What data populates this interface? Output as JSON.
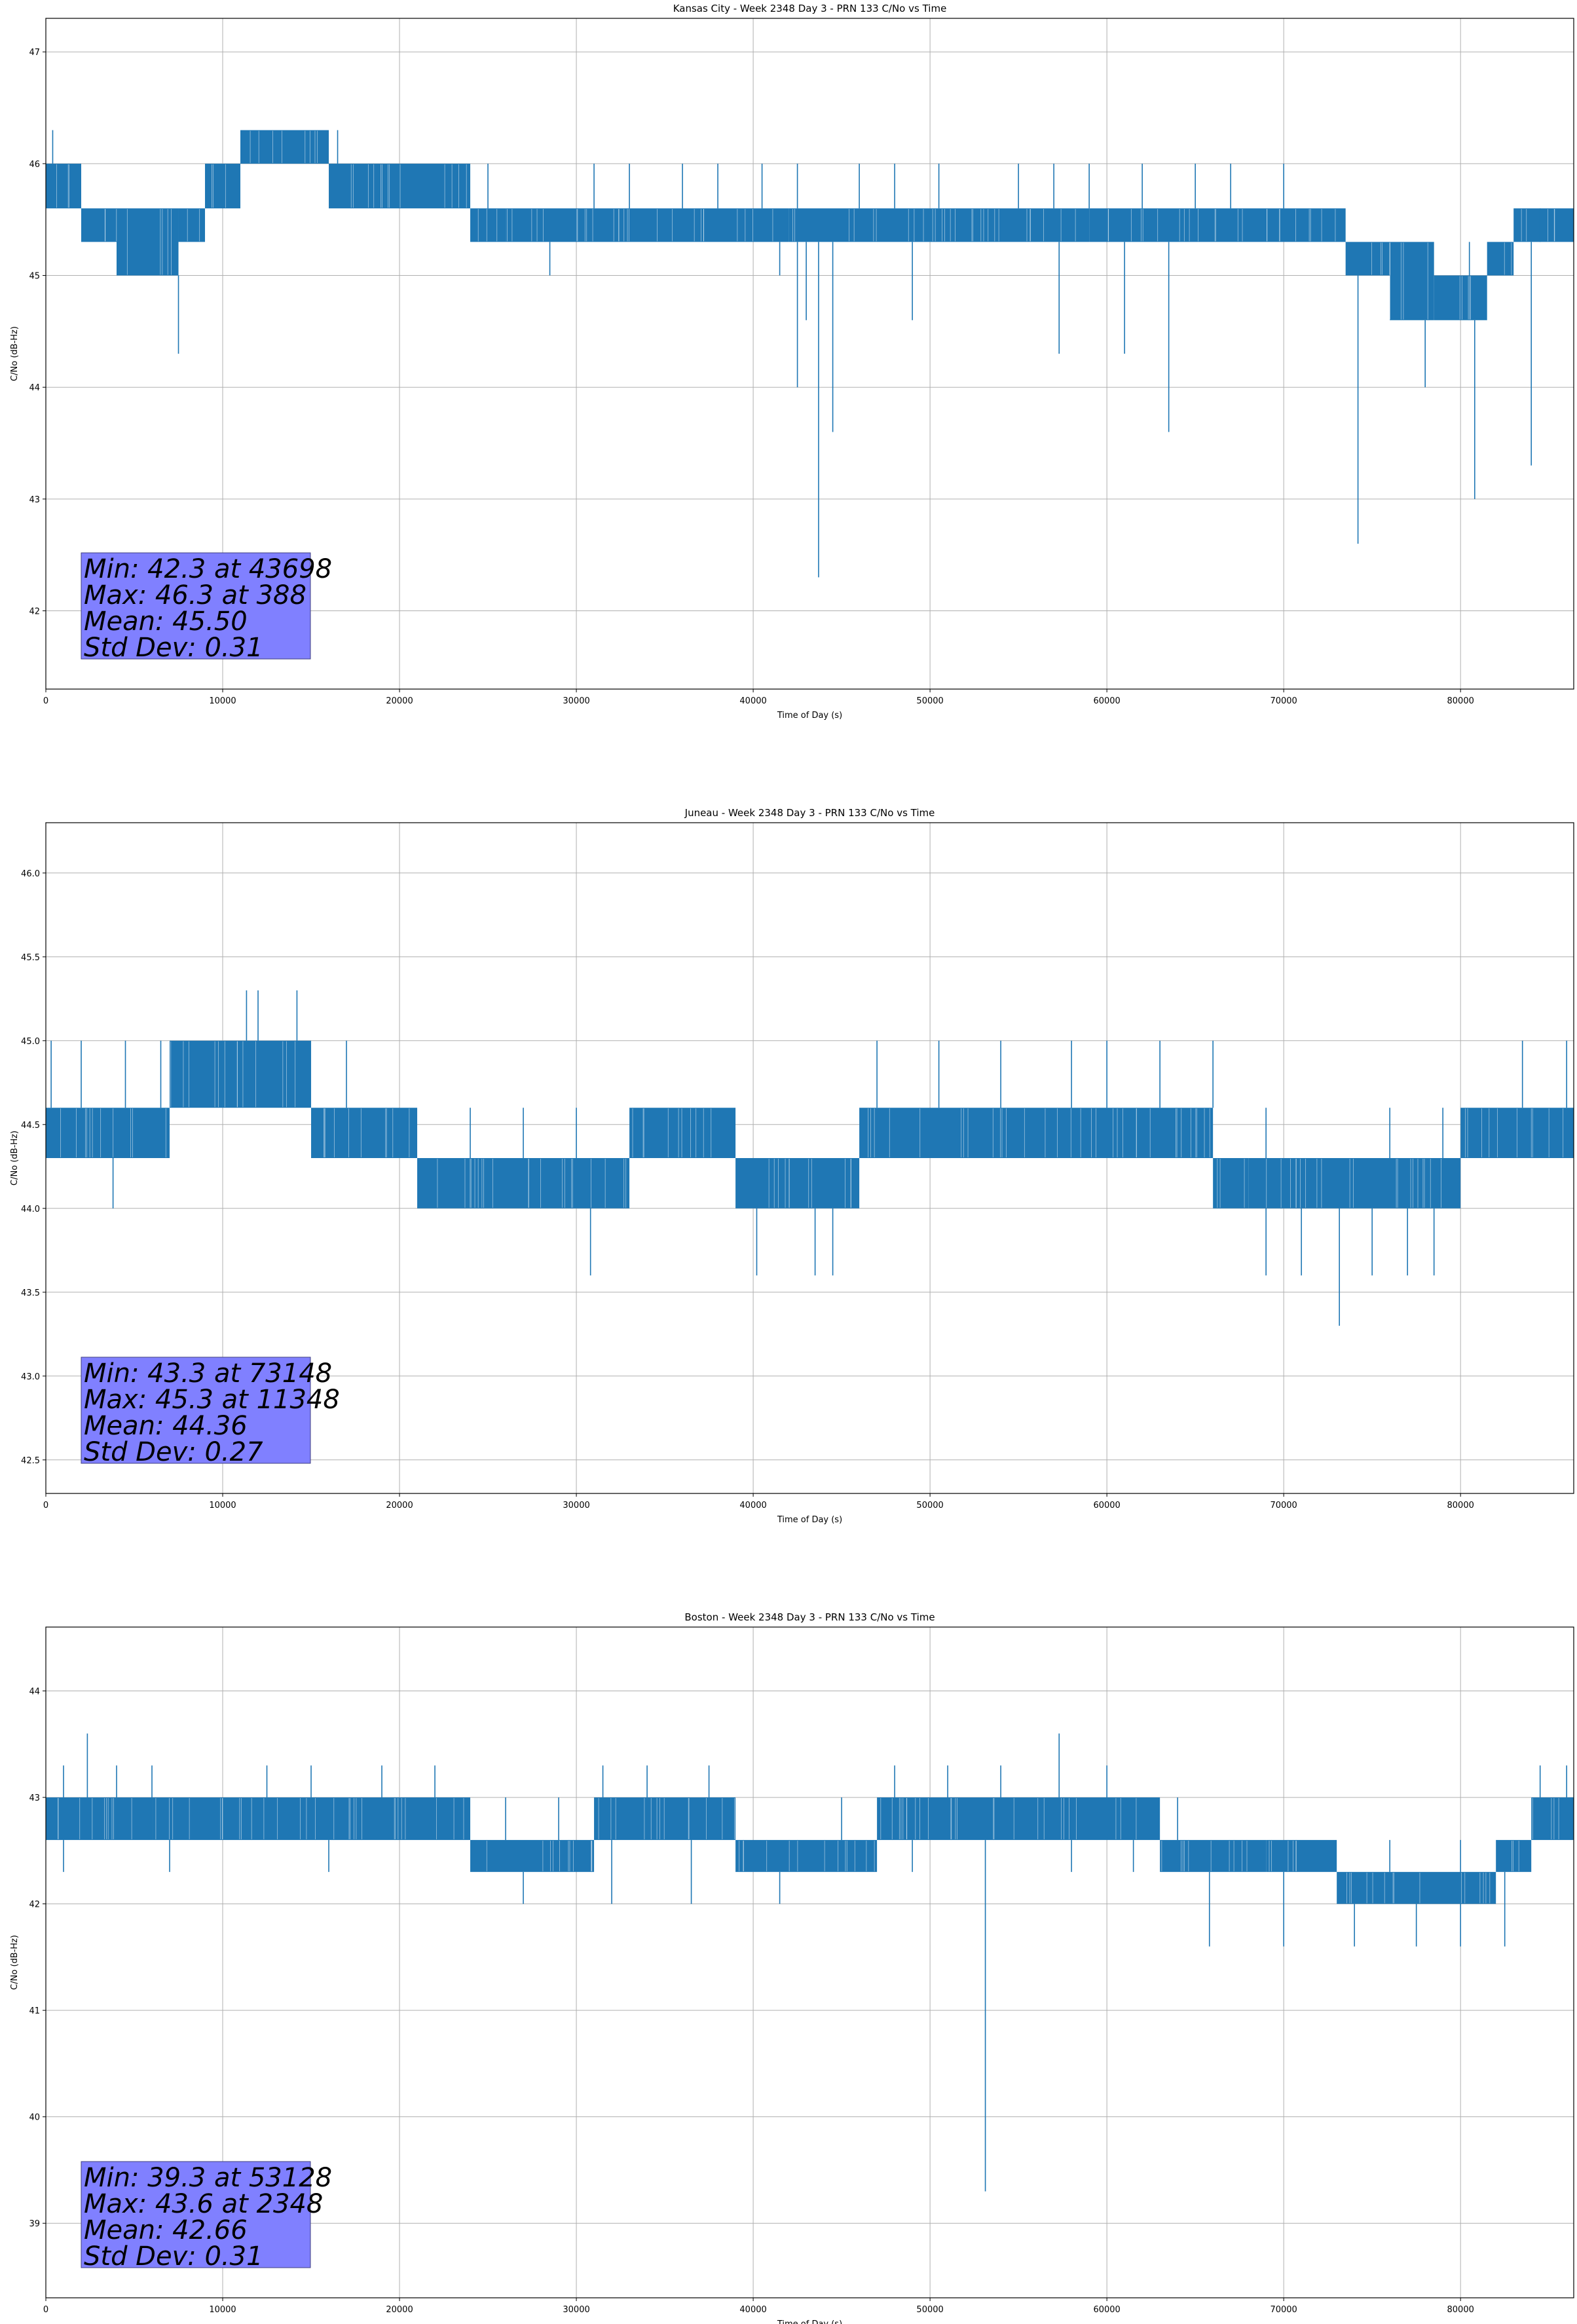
{
  "colors": {
    "line": "#1f77b4",
    "grid": "#b0b0b0",
    "stats_box_fill": "#8080ff",
    "stats_box_stroke": "#3f3f7f"
  },
  "chart_data": [
    {
      "type": "line",
      "title": "Kansas City - Week 2348 Day 3 - PRN 133 C/No vs Time",
      "xlabel": "Time of Day (s)",
      "ylabel": "C/No (dB-Hz)",
      "xlim": [
        0,
        86400
      ],
      "ylim": [
        41.3,
        47.3
      ],
      "xticks": [
        0,
        10000,
        20000,
        30000,
        40000,
        50000,
        60000,
        70000,
        80000
      ],
      "yticks": [
        42,
        43,
        44,
        45,
        46,
        47
      ],
      "grid": true,
      "stats": [
        "Min: 42.3 at 43698",
        "Max: 46.3 at 388",
        "Mean: 45.50",
        "Std Dev: 0.31"
      ],
      "series": [
        {
          "bands": [
            [
              0,
              2000,
              45.6,
              46.0
            ],
            [
              2000,
              4000,
              45.3,
              45.6
            ],
            [
              4000,
              7500,
              45.0,
              45.6
            ],
            [
              7500,
              9000,
              45.3,
              45.6
            ],
            [
              9000,
              11000,
              45.6,
              46.0
            ],
            [
              11000,
              16000,
              46.0,
              46.3
            ],
            [
              16000,
              24000,
              45.6,
              46.0
            ],
            [
              24000,
              26000,
              45.3,
              45.6
            ],
            [
              26000,
              42000,
              45.3,
              45.6
            ],
            [
              42000,
              59000,
              45.3,
              45.6
            ],
            [
              59000,
              71500,
              45.3,
              45.6
            ],
            [
              71500,
              73500,
              45.3,
              45.6
            ],
            [
              73500,
              76000,
              45.0,
              45.3
            ],
            [
              76000,
              78500,
              44.6,
              45.3
            ],
            [
              78500,
              81500,
              44.6,
              45.0
            ],
            [
              81500,
              83000,
              45.0,
              45.3
            ],
            [
              83000,
              86400,
              45.3,
              45.6
            ]
          ],
          "spikes_up": [
            [
              388,
              46.3
            ],
            [
              1200,
              46.0
            ],
            [
              9500,
              46.0
            ],
            [
              12000,
              46.3
            ],
            [
              16500,
              46.3
            ],
            [
              19000,
              46.0
            ],
            [
              22000,
              46.0
            ],
            [
              25000,
              46.0
            ],
            [
              31000,
              46.0
            ],
            [
              33000,
              46.0
            ],
            [
              36000,
              46.0
            ],
            [
              38000,
              46.0
            ],
            [
              40500,
              46.0
            ],
            [
              42500,
              46.0
            ],
            [
              46000,
              46.0
            ],
            [
              48000,
              46.0
            ],
            [
              50500,
              46.0
            ],
            [
              55000,
              46.0
            ],
            [
              57000,
              46.0
            ],
            [
              59000,
              46.0
            ],
            [
              62000,
              46.0
            ],
            [
              65000,
              46.0
            ],
            [
              67000,
              46.0
            ],
            [
              70000,
              46.0
            ],
            [
              80500,
              45.3
            ],
            [
              84500,
              45.3
            ]
          ],
          "spikes_down": [
            [
              7500,
              44.3
            ],
            [
              28500,
              45.0
            ],
            [
              41500,
              45.0
            ],
            [
              42500,
              44.0
            ],
            [
              43000,
              44.6
            ],
            [
              43698,
              42.3
            ],
            [
              44500,
              43.6
            ],
            [
              49000,
              44.6
            ],
            [
              57300,
              44.3
            ],
            [
              61000,
              44.3
            ],
            [
              63500,
              43.6
            ],
            [
              74200,
              42.6
            ],
            [
              78000,
              44.0
            ],
            [
              80800,
              43.0
            ],
            [
              84000,
              43.3
            ]
          ]
        }
      ]
    },
    {
      "type": "line",
      "title": "Juneau - Week 2348 Day 3 - PRN 133 C/No vs Time",
      "xlabel": "Time of Day (s)",
      "ylabel": "C/No (dB-Hz)",
      "xlim": [
        0,
        86400
      ],
      "ylim": [
        42.3,
        46.3
      ],
      "xticks": [
        0,
        10000,
        20000,
        30000,
        40000,
        50000,
        60000,
        70000,
        80000
      ],
      "yticks": [
        42.5,
        43.0,
        43.5,
        44.0,
        44.5,
        45.0,
        45.5,
        46.0
      ],
      "grid": true,
      "stats": [
        "Min: 43.3 at 73148",
        "Max: 45.3 at 11348",
        "Mean: 44.36",
        "Std Dev: 0.27"
      ],
      "series": [
        {
          "bands": [
            [
              0,
              7000,
              44.3,
              44.6
            ],
            [
              7000,
              15000,
              44.6,
              45.0
            ],
            [
              15000,
              21000,
              44.3,
              44.6
            ],
            [
              21000,
              33000,
              44.0,
              44.3
            ],
            [
              33000,
              39000,
              44.3,
              44.6
            ],
            [
              39000,
              46000,
              44.0,
              44.3
            ],
            [
              46000,
              66000,
              44.3,
              44.6
            ],
            [
              66000,
              68000,
              44.0,
              44.3
            ],
            [
              68000,
              80000,
              44.0,
              44.3
            ],
            [
              80000,
              86400,
              44.3,
              44.6
            ]
          ],
          "spikes_up": [
            [
              300,
              45.0
            ],
            [
              2000,
              45.0
            ],
            [
              4500,
              45.0
            ],
            [
              6500,
              45.0
            ],
            [
              11348,
              45.3
            ],
            [
              12000,
              45.3
            ],
            [
              14200,
              45.3
            ],
            [
              17000,
              45.0
            ],
            [
              20500,
              44.6
            ],
            [
              24000,
              44.6
            ],
            [
              27000,
              44.6
            ],
            [
              30000,
              44.6
            ],
            [
              37000,
              44.6
            ],
            [
              47000,
              45.0
            ],
            [
              50500,
              45.0
            ],
            [
              54000,
              45.0
            ],
            [
              58000,
              45.0
            ],
            [
              60000,
              45.0
            ],
            [
              63000,
              45.0
            ],
            [
              66000,
              45.0
            ],
            [
              69000,
              44.6
            ],
            [
              76000,
              44.6
            ],
            [
              79000,
              44.6
            ],
            [
              83500,
              45.0
            ],
            [
              86000,
              45.0
            ]
          ],
          "spikes_down": [
            [
              3800,
              44.0
            ],
            [
              30800,
              43.6
            ],
            [
              40200,
              43.6
            ],
            [
              41000,
              44.0
            ],
            [
              43500,
              43.6
            ],
            [
              44500,
              43.6
            ],
            [
              69000,
              43.6
            ],
            [
              71000,
              43.6
            ],
            [
              73148,
              43.3
            ],
            [
              75000,
              43.6
            ],
            [
              77000,
              43.6
            ],
            [
              78500,
              43.6
            ]
          ]
        }
      ]
    },
    {
      "type": "line",
      "title": "Boston - Week 2348 Day 3 - PRN 133 C/No vs Time",
      "xlabel": "Time of Day (s)",
      "ylabel": "C/No (dB-Hz)",
      "xlim": [
        0,
        86400
      ],
      "ylim": [
        38.3,
        44.6
      ],
      "xticks": [
        0,
        10000,
        20000,
        30000,
        40000,
        50000,
        60000,
        70000,
        80000
      ],
      "yticks": [
        39,
        40,
        41,
        42,
        43,
        44
      ],
      "grid": true,
      "stats": [
        "Min: 39.3 at 53128",
        "Max: 43.6 at 2348",
        "Mean: 42.66",
        "Std Dev: 0.31"
      ],
      "series": [
        {
          "bands": [
            [
              0,
              6000,
              42.6,
              43.0
            ],
            [
              6000,
              11000,
              42.6,
              43.0
            ],
            [
              11000,
              24000,
              42.6,
              43.0
            ],
            [
              24000,
              31000,
              42.3,
              42.6
            ],
            [
              31000,
              39000,
              42.6,
              43.0
            ],
            [
              39000,
              47000,
              42.3,
              42.6
            ],
            [
              47000,
              63000,
              42.6,
              43.0
            ],
            [
              63000,
              69000,
              42.3,
              42.6
            ],
            [
              69000,
              73000,
              42.3,
              42.6
            ],
            [
              73000,
              82000,
              42.0,
              42.3
            ],
            [
              82000,
              84000,
              42.3,
              42.6
            ],
            [
              84000,
              86400,
              42.6,
              43.0
            ]
          ],
          "spikes_up": [
            [
              2348,
              43.6
            ],
            [
              1000,
              43.3
            ],
            [
              4000,
              43.3
            ],
            [
              6000,
              43.3
            ],
            [
              12500,
              43.3
            ],
            [
              15000,
              43.3
            ],
            [
              19000,
              43.3
            ],
            [
              22000,
              43.3
            ],
            [
              26000,
              43.0
            ],
            [
              29000,
              43.0
            ],
            [
              31500,
              43.3
            ],
            [
              34000,
              43.3
            ],
            [
              37500,
              43.3
            ],
            [
              45000,
              43.0
            ],
            [
              48000,
              43.3
            ],
            [
              51000,
              43.3
            ],
            [
              54000,
              43.3
            ],
            [
              57300,
              43.6
            ],
            [
              60000,
              43.3
            ],
            [
              64000,
              43.0
            ],
            [
              68000,
              42.6
            ],
            [
              76000,
              42.6
            ],
            [
              80000,
              42.6
            ],
            [
              84500,
              43.3
            ],
            [
              86000,
              43.3
            ]
          ],
          "spikes_down": [
            [
              1000,
              42.3
            ],
            [
              7000,
              42.3
            ],
            [
              16000,
              42.3
            ],
            [
              27000,
              42.0
            ],
            [
              32000,
              42.0
            ],
            [
              36500,
              42.0
            ],
            [
              41500,
              42.0
            ],
            [
              49000,
              42.3
            ],
            [
              53128,
              39.3
            ],
            [
              58000,
              42.3
            ],
            [
              61500,
              42.3
            ],
            [
              65800,
              41.6
            ],
            [
              70000,
              41.6
            ],
            [
              74000,
              41.6
            ],
            [
              77500,
              41.6
            ],
            [
              80000,
              41.6
            ],
            [
              82500,
              41.6
            ]
          ]
        }
      ]
    }
  ]
}
